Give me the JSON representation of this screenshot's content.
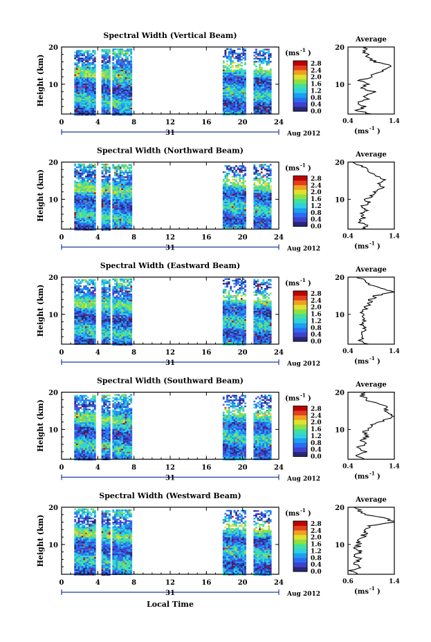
{
  "colorbar": {
    "unit": "(ms",
    "unit_exp": "-1",
    "unit_close": ")",
    "tick_labels": [
      "2.8",
      "2.4",
      "2.0",
      "1.6",
      "1.2",
      "0.8",
      "0.4",
      "0.0"
    ],
    "colors": [
      "#282878",
      "#4040d0",
      "#2a6cf0",
      "#1aa0f0",
      "#30d0e0",
      "#40e0a0",
      "#90e040",
      "#e0e030",
      "#f0a020",
      "#e04020",
      "#c00000"
    ]
  },
  "xaxis_label": "Local Time",
  "panels": [
    {
      "title": "Spectral Width (Vertical Beam)",
      "ylabel": "Height (km)",
      "avg_title": "Average",
      "avg_unit": "(ms",
      "avg_unit_exp": "-1",
      "avg_unit_close": ")",
      "date": "Aug 2012",
      "day": "31"
    },
    {
      "title": "Spectral Width (Northward Beam)",
      "ylabel": "Height (km)",
      "avg_title": "Average",
      "avg_unit": "(ms",
      "avg_unit_exp": "-1",
      "avg_unit_close": ")",
      "date": "Aug 2012",
      "day": "31"
    },
    {
      "title": "Spectral Width (Eastward Beam)",
      "ylabel": "Height (km)",
      "avg_title": "Average",
      "avg_unit": "(ms",
      "avg_unit_exp": "-1",
      "avg_unit_close": ")",
      "date": "Aug 2012",
      "day": "31"
    },
    {
      "title": "Spectral Width (Southward Beam)",
      "ylabel": "Height (km)",
      "avg_title": "Average",
      "avg_unit": "(ms",
      "avg_unit_exp": "-1",
      "avg_unit_close": ")",
      "date": "Aug 2012",
      "day": "31"
    },
    {
      "title": "Spectral Width (Westward Beam)",
      "ylabel": "Height (km)",
      "avg_title": "Average",
      "avg_unit": "(ms",
      "avg_unit_exp": "-1",
      "avg_unit_close": ")",
      "date": "Aug 2012",
      "day": "31"
    }
  ],
  "chart_data": [
    {
      "type": "heatmap",
      "title": "Spectral Width (Vertical Beam)",
      "xlabel": "",
      "ylabel": "Height (km)",
      "xlim": [
        0,
        24
      ],
      "ylim": [
        2,
        20
      ],
      "xticks": [
        0,
        4,
        8,
        12,
        16,
        20,
        24
      ],
      "yticks": [
        10,
        20
      ],
      "colorbar_range": [
        0,
        3.0
      ],
      "data_segments_hours": [
        [
          1.4,
          3.6
        ],
        [
          4.4,
          5.2
        ],
        [
          5.6,
          7.7
        ],
        [
          17.8,
          20.2
        ],
        [
          21.2,
          23.1
        ]
      ],
      "average_profile": {
        "xlim": [
          0.4,
          1.4
        ],
        "xticks": [
          0.4,
          1.4
        ],
        "height_km": [
          2,
          3,
          4,
          5,
          6,
          7,
          8,
          9,
          10,
          11,
          12,
          13,
          14,
          15,
          16,
          17,
          18,
          19,
          20
        ],
        "width_ms": [
          0.9,
          0.6,
          0.75,
          0.6,
          0.8,
          0.75,
          0.95,
          0.7,
          0.8,
          0.65,
          0.9,
          1.0,
          1.2,
          1.3,
          1.0,
          0.85,
          0.8,
          0.75,
          0.8
        ]
      }
    },
    {
      "type": "heatmap",
      "title": "Spectral Width (Northward Beam)",
      "xlabel": "",
      "ylabel": "Height (km)",
      "xlim": [
        0,
        24
      ],
      "ylim": [
        2,
        20
      ],
      "xticks": [
        0,
        4,
        8,
        12,
        16,
        20,
        24
      ],
      "yticks": [
        10,
        20
      ],
      "colorbar_range": [
        0,
        3.0
      ],
      "data_segments_hours": [
        [
          1.4,
          3.6
        ],
        [
          4.4,
          5.2
        ],
        [
          5.6,
          7.7
        ],
        [
          17.8,
          20.2
        ],
        [
          21.2,
          23.1
        ]
      ],
      "average_profile": {
        "xlim": [
          0.4,
          1.4
        ],
        "xticks": [
          0.4,
          1.4
        ],
        "height_km": [
          2,
          3,
          4,
          5,
          6,
          7,
          8,
          9,
          10,
          11,
          12,
          13,
          14,
          15,
          16,
          17,
          18,
          19,
          20
        ],
        "width_ms": [
          0.7,
          0.8,
          0.6,
          0.75,
          0.7,
          0.8,
          0.7,
          0.85,
          0.8,
          0.9,
          1.0,
          1.15,
          1.05,
          1.2,
          1.1,
          0.85,
          0.8,
          0.7,
          0.5
        ]
      }
    },
    {
      "type": "heatmap",
      "title": "Spectral Width (Eastward Beam)",
      "xlabel": "",
      "ylabel": "Height (km)",
      "xlim": [
        0,
        24
      ],
      "ylim": [
        2,
        20
      ],
      "xticks": [
        0,
        4,
        8,
        12,
        16,
        20,
        24
      ],
      "yticks": [
        10,
        20
      ],
      "colorbar_range": [
        0,
        3.0
      ],
      "data_segments_hours": [
        [
          1.4,
          3.6
        ],
        [
          4.4,
          5.2
        ],
        [
          5.6,
          7.7
        ],
        [
          17.8,
          20.2
        ],
        [
          21.2,
          23.1
        ]
      ],
      "average_profile": {
        "xlim": [
          0.4,
          1.4
        ],
        "xticks": [
          0.4,
          1.4
        ],
        "height_km": [
          2,
          3,
          4,
          5,
          6,
          7,
          8,
          9,
          10,
          11,
          12,
          13,
          14,
          15,
          16,
          17,
          18,
          19,
          20
        ],
        "width_ms": [
          0.8,
          0.65,
          0.75,
          0.7,
          0.8,
          0.7,
          0.75,
          0.7,
          0.7,
          0.75,
          0.8,
          0.85,
          0.9,
          1.0,
          1.35,
          1.1,
          0.9,
          0.8,
          0.6
        ]
      }
    },
    {
      "type": "heatmap",
      "title": "Spectral Width (Southward Beam)",
      "xlabel": "",
      "ylabel": "Height (km)",
      "xlim": [
        0,
        24
      ],
      "ylim": [
        2,
        20
      ],
      "xticks": [
        0,
        4,
        8,
        12,
        16,
        20,
        24
      ],
      "yticks": [
        10,
        20
      ],
      "colorbar_range": [
        0,
        3.0
      ],
      "data_segments_hours": [
        [
          1.4,
          3.6
        ],
        [
          4.4,
          5.2
        ],
        [
          5.6,
          7.7
        ],
        [
          17.8,
          20.2
        ],
        [
          21.2,
          23.1
        ]
      ],
      "average_profile": {
        "xlim": [
          0.4,
          1.4
        ],
        "xticks": [
          0.4,
          1.4
        ],
        "height_km": [
          2,
          3,
          4,
          5,
          6,
          7,
          8,
          9,
          10,
          11,
          12,
          13,
          14,
          15,
          16,
          17,
          18,
          19,
          20
        ],
        "width_ms": [
          0.75,
          0.6,
          0.8,
          0.6,
          0.75,
          0.7,
          0.8,
          0.75,
          0.8,
          0.9,
          1.1,
          1.3,
          1.35,
          1.2,
          1.25,
          1.0,
          0.8,
          0.7,
          0.75
        ]
      }
    },
    {
      "type": "heatmap",
      "title": "Spectral Width (Westward Beam)",
      "xlabel": "Local Time",
      "ylabel": "Height (km)",
      "xlim": [
        0,
        24
      ],
      "ylim": [
        2,
        20
      ],
      "xticks": [
        0,
        4,
        8,
        12,
        16,
        20,
        24
      ],
      "yticks": [
        10,
        20
      ],
      "colorbar_range": [
        0,
        3.0
      ],
      "data_segments_hours": [
        [
          1.4,
          3.6
        ],
        [
          4.4,
          5.2
        ],
        [
          5.6,
          7.7
        ],
        [
          17.8,
          20.2
        ],
        [
          21.2,
          23.1
        ]
      ],
      "average_profile": {
        "xlim": [
          0.6,
          1.4
        ],
        "xticks": [
          0.6,
          1.4
        ],
        "height_km": [
          2,
          3,
          4,
          5,
          6,
          7,
          8,
          9,
          10,
          11,
          12,
          13,
          14,
          15,
          16,
          17,
          18,
          19,
          20
        ],
        "width_ms": [
          0.75,
          0.65,
          0.8,
          0.7,
          0.8,
          0.75,
          0.8,
          0.75,
          0.8,
          0.8,
          0.85,
          0.9,
          0.95,
          1.0,
          1.4,
          1.25,
          0.9,
          0.8,
          0.7
        ]
      }
    }
  ]
}
